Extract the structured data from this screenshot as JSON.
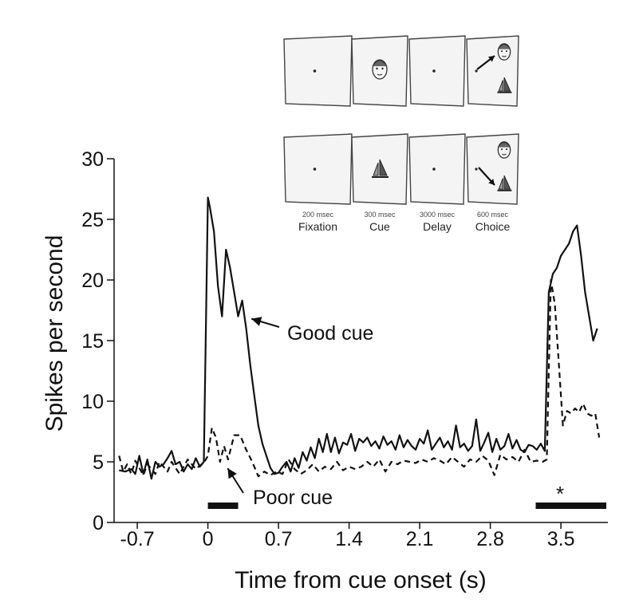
{
  "chart_data": {
    "type": "line",
    "xlabel": "Time from cue onset (s)",
    "ylabel": "Spikes per second",
    "xlim": [
      -0.93,
      3.95
    ],
    "ylim": [
      0,
      30
    ],
    "xticks": [
      -0.7,
      0,
      0.7,
      1.4,
      2.1,
      2.8,
      3.5
    ],
    "xtick_labels": [
      "-0.7",
      "0",
      "0.7",
      "1.4",
      "2.1",
      "2.8",
      "3.5"
    ],
    "yticks": [
      0,
      5,
      10,
      15,
      20,
      25,
      30
    ],
    "ytick_labels": [
      "0",
      "5",
      "10",
      "15",
      "20",
      "25",
      "30"
    ],
    "series": [
      {
        "name": "Good cue",
        "style": "solid",
        "color": "#111111",
        "x": [
          -0.88,
          -0.82,
          -0.76,
          -0.72,
          -0.68,
          -0.64,
          -0.6,
          -0.56,
          -0.52,
          -0.48,
          -0.44,
          -0.4,
          -0.36,
          -0.32,
          -0.28,
          -0.24,
          -0.2,
          -0.16,
          -0.12,
          -0.08,
          -0.04,
          0.0,
          0.02,
          0.06,
          0.1,
          0.14,
          0.18,
          0.22,
          0.26,
          0.3,
          0.34,
          0.38,
          0.42,
          0.46,
          0.5,
          0.54,
          0.58,
          0.62,
          0.66,
          0.7,
          0.74,
          0.78,
          0.82,
          0.86,
          0.9,
          0.94,
          0.98,
          1.02,
          1.06,
          1.1,
          1.14,
          1.18,
          1.22,
          1.26,
          1.3,
          1.34,
          1.38,
          1.42,
          1.46,
          1.5,
          1.54,
          1.58,
          1.62,
          1.66,
          1.7,
          1.74,
          1.78,
          1.82,
          1.86,
          1.9,
          1.94,
          1.98,
          2.02,
          2.06,
          2.1,
          2.14,
          2.18,
          2.22,
          2.26,
          2.3,
          2.34,
          2.38,
          2.42,
          2.46,
          2.5,
          2.54,
          2.58,
          2.62,
          2.66,
          2.7,
          2.74,
          2.78,
          2.82,
          2.86,
          2.9,
          2.94,
          2.98,
          3.02,
          3.06,
          3.1,
          3.14,
          3.18,
          3.22,
          3.26,
          3.3,
          3.34,
          3.38,
          3.42,
          3.46,
          3.5,
          3.54,
          3.58,
          3.62,
          3.66,
          3.7,
          3.74,
          3.78,
          3.82,
          3.86
        ],
        "y": [
          4.3,
          4.2,
          4.4,
          4.0,
          5.5,
          4.0,
          5.2,
          3.6,
          5.0,
          4.6,
          4.8,
          5.3,
          5.9,
          4.8,
          5.0,
          4.2,
          4.8,
          4.4,
          5.3,
          4.6,
          5.0,
          26.8,
          26.0,
          24.0,
          19.5,
          17.0,
          22.5,
          21.0,
          19.0,
          17.0,
          18.3,
          16.0,
          13.0,
          10.5,
          8.0,
          6.5,
          5.5,
          4.5,
          4.0,
          4.1,
          4.6,
          5.0,
          4.2,
          5.3,
          4.5,
          5.8,
          5.1,
          6.2,
          5.3,
          6.9,
          5.8,
          7.3,
          5.8,
          7.0,
          5.7,
          6.6,
          6.4,
          7.3,
          5.9,
          6.9,
          6.6,
          7.0,
          6.3,
          6.7,
          6.1,
          7.1,
          6.4,
          6.7,
          6.0,
          7.2,
          6.2,
          6.8,
          6.3,
          6.0,
          6.9,
          6.5,
          7.6,
          6.0,
          6.5,
          7.0,
          6.2,
          6.7,
          6.0,
          8.0,
          6.2,
          6.5,
          5.9,
          6.3,
          8.5,
          5.9,
          6.6,
          7.4,
          5.8,
          6.9,
          6.0,
          6.3,
          7.3,
          6.1,
          6.8,
          6.0,
          5.8,
          6.4,
          6.3,
          6.0,
          6.5,
          5.9,
          19.0,
          20.5,
          21.0,
          22.0,
          22.5,
          23.0,
          24.0,
          24.5,
          22.0,
          19.0,
          17.0,
          15.0,
          16.0
        ]
      },
      {
        "name": "Poor cue",
        "style": "dashed",
        "color": "#111111",
        "x": [
          -0.88,
          -0.84,
          -0.8,
          -0.76,
          -0.72,
          -0.68,
          -0.64,
          -0.6,
          -0.56,
          -0.52,
          -0.48,
          -0.44,
          -0.4,
          -0.36,
          -0.32,
          -0.28,
          -0.24,
          -0.2,
          -0.16,
          -0.12,
          -0.08,
          -0.04,
          0.0,
          0.04,
          0.08,
          0.12,
          0.16,
          0.2,
          0.26,
          0.32,
          0.38,
          0.44,
          0.5,
          0.56,
          0.62,
          0.68,
          0.74,
          0.8,
          0.86,
          0.92,
          0.98,
          1.04,
          1.1,
          1.16,
          1.22,
          1.28,
          1.34,
          1.4,
          1.46,
          1.52,
          1.58,
          1.64,
          1.7,
          1.76,
          1.82,
          1.88,
          1.94,
          2.0,
          2.06,
          2.12,
          2.18,
          2.24,
          2.3,
          2.36,
          2.42,
          2.48,
          2.54,
          2.6,
          2.66,
          2.72,
          2.78,
          2.84,
          2.9,
          2.96,
          3.02,
          3.08,
          3.14,
          3.2,
          3.26,
          3.32,
          3.36,
          3.4,
          3.44,
          3.48,
          3.52,
          3.56,
          3.6,
          3.64,
          3.68,
          3.72,
          3.76,
          3.8,
          3.84,
          3.88
        ],
        "y": [
          5.5,
          4.2,
          4.8,
          4.0,
          5.1,
          4.5,
          3.9,
          4.8,
          4.4,
          4.0,
          5.0,
          4.6,
          4.2,
          5.0,
          4.5,
          4.0,
          4.6,
          5.2,
          4.8,
          4.4,
          4.7,
          4.9,
          5.5,
          7.8,
          7.0,
          5.0,
          6.3,
          5.2,
          7.2,
          7.2,
          6.0,
          5.0,
          3.8,
          4.2,
          3.9,
          4.2,
          4.0,
          5.2,
          4.4,
          4.0,
          4.3,
          4.8,
          4.2,
          4.6,
          4.4,
          5.0,
          4.3,
          4.6,
          4.4,
          4.6,
          5.0,
          4.6,
          5.2,
          4.2,
          5.0,
          4.8,
          5.1,
          5.0,
          4.9,
          5.2,
          5.0,
          5.3,
          5.1,
          4.8,
          5.4,
          5.0,
          4.6,
          5.2,
          5.0,
          5.5,
          5.1,
          3.9,
          5.6,
          5.2,
          5.4,
          5.0,
          6.0,
          5.0,
          5.1,
          5.0,
          5.2,
          20.0,
          18.0,
          13.0,
          8.0,
          9.2,
          9.0,
          9.4,
          9.1,
          9.8,
          9.0,
          8.8,
          9.0,
          7.0
        ]
      }
    ],
    "annotations": [
      {
        "text": "Good cue",
        "arrow_to": [
          0.4,
          16.8
        ]
      },
      {
        "text": "Poor cue",
        "arrow_to": [
          0.18,
          5.0
        ]
      },
      {
        "text": "*",
        "note": "above choice-period bar"
      }
    ],
    "period_bars": [
      {
        "from": 0.0,
        "to": 0.3
      },
      {
        "from": 3.25,
        "to": 3.95
      }
    ],
    "grid": false,
    "legend": "none"
  },
  "panels": {
    "captions": [
      {
        "small": "200 msec",
        "big": "Fixation"
      },
      {
        "small": "300 msec",
        "big": "Cue"
      },
      {
        "small": "3000 msec",
        "big": "Delay"
      },
      {
        "small": "600 msec",
        "big": "Choice"
      }
    ],
    "top_row": [
      "fixation-dot",
      "face",
      "fixation-dot",
      "face+boat, arrow to face"
    ],
    "bottom_row": [
      "fixation-dot",
      "boat",
      "fixation-dot",
      "face+boat, arrow to boat"
    ]
  }
}
